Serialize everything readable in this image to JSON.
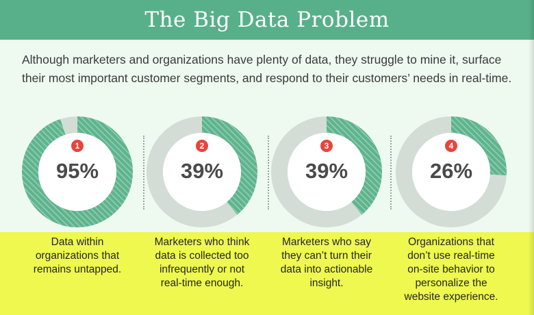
{
  "title": "The Big Data Problem",
  "intro": "Although marketers and organizations have plenty of data, they struggle to mine it, surface their most important customer segments, and respond to their customers’ needs in real-time.",
  "colors": {
    "banner": "#58b08a",
    "background": "#eef9f0",
    "highlight": "#eef84e",
    "ring_fill": "#5fb38e",
    "ring_track": "#d3ddd6",
    "badge": "#e8443d"
  },
  "chart_data": {
    "type": "pie",
    "variant": "donut",
    "items": [
      {
        "number": "1",
        "label": "95%",
        "value": 95,
        "caption": "Data within\norganizations that\nremains untapped."
      },
      {
        "number": "2",
        "label": "39%",
        "value": 39,
        "caption": "Marketers who think\ndata is collected too\ninfrequently or not\nreal-time enough."
      },
      {
        "number": "3",
        "label": "39%",
        "value": 39,
        "caption": "Marketers who say\nthey can’t turn their\ndata into actionable\ninsight."
      },
      {
        "number": "4",
        "label": "26%",
        "value": 26,
        "caption": "Organizations that\ndon’t use real-time\non-site behavior to\npersonalize the\nwebsite experience."
      }
    ]
  }
}
